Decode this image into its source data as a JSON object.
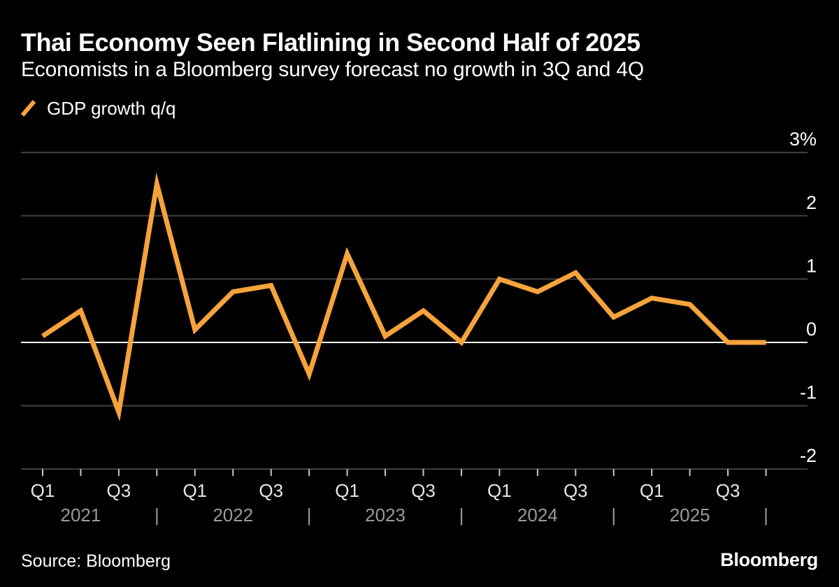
{
  "header": {
    "title": "Thai Economy Seen Flatlining in Second Half of 2025",
    "subtitle": "Economists in a Bloomberg survey forecast no growth in 3Q and 4Q"
  },
  "legend": {
    "label": "GDP growth q/q"
  },
  "footer": {
    "source": "Source: Bloomberg",
    "brand": "Bloomberg"
  },
  "colors": {
    "background": "#000000",
    "accent": "#F5A33C",
    "grid_line": "#424242",
    "zero_line": "#F2F2F2",
    "tick": "#C8C8C8",
    "quarter_label": "#E6E6E6",
    "year_label": "#9A9A9A",
    "text_primary": "#FFFFFF"
  },
  "chart_data": {
    "type": "line",
    "title": "Thai Economy Seen Flatlining in Second Half of 2025",
    "subtitle": "Economists in a Bloomberg survey forecast no growth in 3Q and 4Q",
    "grid": "horizontal",
    "legend_position": "top-left",
    "categories": [
      "Q1 2021",
      "Q2 2021",
      "Q3 2021",
      "Q4 2021",
      "Q1 2022",
      "Q2 2022",
      "Q3 2022",
      "Q4 2022",
      "Q1 2023",
      "Q2 2023",
      "Q3 2023",
      "Q4 2023",
      "Q1 2024",
      "Q2 2024",
      "Q3 2024",
      "Q4 2024",
      "Q1 2025",
      "Q2 2025",
      "Q3 2025",
      "Q4 2025"
    ],
    "series": [
      {
        "name": "GDP growth q/q",
        "values": [
          0.1,
          0.5,
          -1.1,
          2.5,
          0.2,
          0.8,
          0.9,
          -0.5,
          1.4,
          0.1,
          0.5,
          0.0,
          1.0,
          0.8,
          1.1,
          0.4,
          0.7,
          0.6,
          0.0,
          0.0
        ]
      }
    ],
    "x_axis": {
      "quarter_label_pattern": [
        "Q1",
        "",
        "Q3",
        ""
      ],
      "years": [
        "2021",
        "2022",
        "2023",
        "2024",
        "2025"
      ],
      "year_separator": "|"
    },
    "y_axis": {
      "tick_labels": [
        "3%",
        "2",
        "1",
        "0",
        "-1",
        "-2"
      ],
      "tick_values": [
        3,
        2,
        1,
        0,
        -1,
        -2
      ],
      "range": [
        -2,
        3
      ],
      "zero_line": true,
      "unit": "%"
    }
  }
}
